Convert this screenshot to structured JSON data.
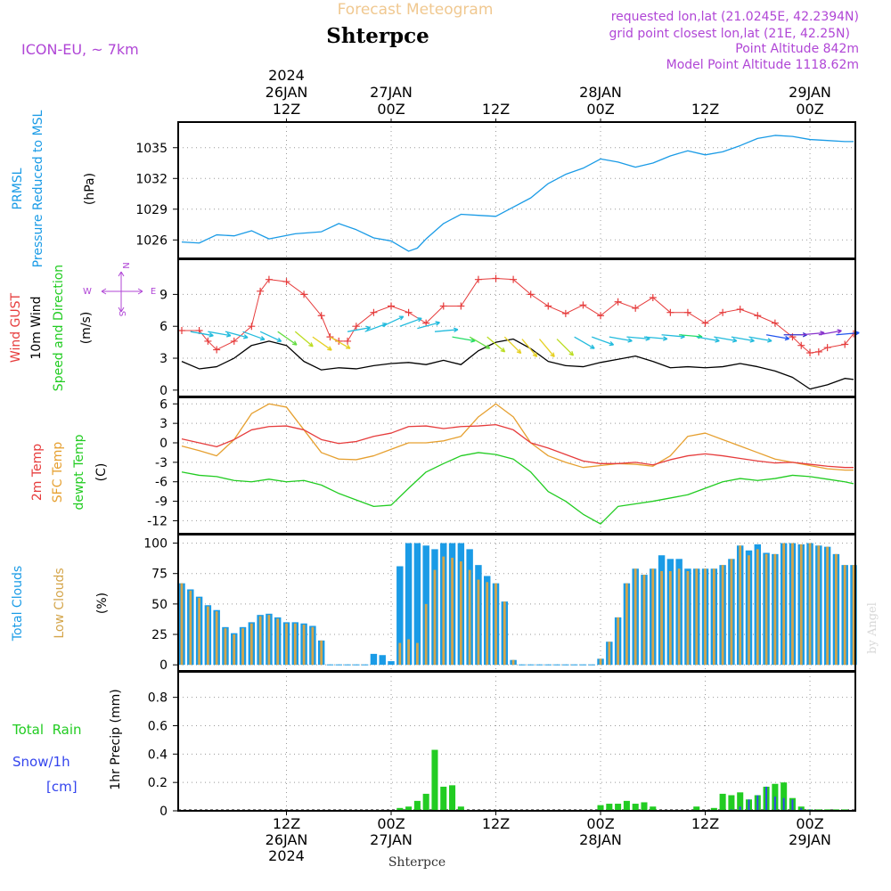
{
  "header": {
    "title": "Forecast Meteogram",
    "location": "Shterpce",
    "model": "ICON-EU, ~ 7km",
    "requested": "requested lon,lat (21.0245E, 42.2394N)",
    "grid_point": "grid point closest lon,lat (21E, 42.25N)",
    "point_altitude": "Point Altitude 842m",
    "model_altitude": "Model Point Altitude 1118.62m",
    "watermark": "by Angel",
    "footer_location": "Shterpce"
  },
  "colors": {
    "pressure": "#1a9be6",
    "gust": "#e63c3c",
    "wind": "#000000",
    "temp2m": "#e63c3c",
    "sfc": "#e6a030",
    "dewpt": "#22cc22",
    "total_clouds": "#1a9be6",
    "low_clouds": "#d4a54a",
    "rain": "#22cc22",
    "snow": "#3344ee",
    "header_purple": "#b046d6",
    "title_orange": "#f0c890"
  },
  "time_axis": {
    "top_labels": [
      {
        "hour": 12,
        "lines": [
          "2024",
          "26JAN",
          "12Z"
        ]
      },
      {
        "hour": 24,
        "lines": [
          "27JAN",
          "00Z"
        ]
      },
      {
        "hour": 36,
        "lines": [
          "12Z"
        ]
      },
      {
        "hour": 48,
        "lines": [
          "28JAN",
          "00Z"
        ]
      },
      {
        "hour": 60,
        "lines": [
          "12Z"
        ]
      },
      {
        "hour": 72,
        "lines": [
          "29JAN",
          "00Z"
        ]
      }
    ],
    "bottom_labels": [
      {
        "hour": 12,
        "lines": [
          "12Z",
          "26JAN",
          "2024"
        ]
      },
      {
        "hour": 24,
        "lines": [
          "00Z",
          "27JAN"
        ]
      },
      {
        "hour": 36,
        "lines": [
          "12Z"
        ]
      },
      {
        "hour": 48,
        "lines": [
          "00Z",
          "28JAN"
        ]
      },
      {
        "hour": 60,
        "lines": [
          "12Z"
        ]
      },
      {
        "hour": 72,
        "lines": [
          "00Z",
          "29JAN"
        ]
      }
    ],
    "start_hour": 0,
    "end_hour": 77
  },
  "panels": {
    "pressure": {
      "label_lines": [
        "PRMSL",
        "Pressure Reduced to MSL"
      ],
      "unit": "(hPa)",
      "yticks": [
        1026,
        1029,
        1032,
        1035
      ]
    },
    "wind": {
      "label_gust": "Wind GUST",
      "label_wind": "10m Wind",
      "label_dir": "Speed and Direction",
      "unit": "(m/s)",
      "yticks": [
        0,
        3,
        6,
        9
      ],
      "compass": {
        "n": "N",
        "s": "S",
        "w": "W",
        "e": "E"
      }
    },
    "temp": {
      "label_2m": "2m Temp",
      "label_sfc": "SFC Temp",
      "label_dew": "dewpt Temp",
      "unit": "(C)",
      "yticks": [
        6,
        3,
        0,
        -3,
        -6,
        -9,
        -12
      ]
    },
    "clouds": {
      "label_total": "Total Clouds",
      "label_low": "Low Clouds",
      "unit": "(%)",
      "yticks": [
        0,
        25,
        50,
        75,
        100
      ]
    },
    "precip": {
      "label_rain": "Total  Rain",
      "label_snow": "Snow/1h",
      "label_cm": "[cm]",
      "axis_label": "1hr Precip (mm)",
      "yticks": [
        0,
        0.2,
        0.4,
        0.6,
        0.8
      ]
    }
  },
  "chart_data": {
    "type": "line",
    "x_unit": "hours since 26JAN 00Z",
    "pressure": {
      "ylim": [
        1024.2,
        1037.5
      ],
      "x": [
        0,
        2,
        4,
        6,
        8,
        10,
        13,
        16,
        18,
        20,
        22,
        24,
        26,
        27,
        28,
        30,
        32,
        34,
        36,
        38,
        40,
        42,
        44,
        46,
        48,
        50,
        52,
        54,
        56,
        58,
        60,
        62,
        64,
        66,
        68,
        70,
        72,
        74,
        76,
        77
      ],
      "values": [
        1025.8,
        1025.7,
        1026.5,
        1026.4,
        1026.9,
        1026.1,
        1026.6,
        1026.8,
        1027.6,
        1027.0,
        1026.2,
        1025.9,
        1024.9,
        1025.2,
        1026.1,
        1027.6,
        1028.5,
        1028.4,
        1028.3,
        1029.2,
        1030.1,
        1031.5,
        1032.4,
        1033.0,
        1033.9,
        1033.6,
        1033.1,
        1033.5,
        1034.2,
        1034.7,
        1034.3,
        1034.6,
        1035.2,
        1035.9,
        1036.2,
        1036.1,
        1035.8,
        1035.7,
        1035.6,
        1035.6
      ]
    },
    "wind": {
      "ylim": [
        -0.6,
        12.3
      ],
      "gust_x": [
        0,
        2,
        3,
        4,
        6,
        8,
        9,
        10,
        12,
        14,
        16,
        17,
        18,
        19,
        20,
        22,
        24,
        26,
        28,
        30,
        32,
        34,
        36,
        38,
        40,
        42,
        44,
        46,
        48,
        50,
        52,
        54,
        56,
        58,
        60,
        62,
        64,
        66,
        68,
        70,
        71,
        72,
        73,
        74,
        76,
        77
      ],
      "gust": [
        5.6,
        5.6,
        4.6,
        3.8,
        4.6,
        6.0,
        9.3,
        10.4,
        10.2,
        9.0,
        7.0,
        5.0,
        4.6,
        4.6,
        6.0,
        7.3,
        7.9,
        7.3,
        6.3,
        7.9,
        7.9,
        10.4,
        10.5,
        10.4,
        9.0,
        7.9,
        7.2,
        8.0,
        7.0,
        8.3,
        7.7,
        8.7,
        7.3,
        7.3,
        6.3,
        7.3,
        7.6,
        7.0,
        6.3,
        5.0,
        4.2,
        3.5,
        3.6,
        4.0,
        4.3,
        5.3
      ],
      "wind_x": [
        0,
        2,
        4,
        6,
        8,
        10,
        12,
        14,
        16,
        18,
        20,
        22,
        24,
        26,
        28,
        30,
        32,
        34,
        36,
        38,
        40,
        42,
        44,
        46,
        48,
        50,
        52,
        54,
        56,
        58,
        60,
        62,
        64,
        66,
        68,
        70,
        72,
        74,
        76,
        77
      ],
      "wind": [
        2.7,
        2.0,
        2.2,
        3.0,
        4.2,
        4.6,
        4.2,
        2.7,
        1.9,
        2.1,
        2.0,
        2.3,
        2.5,
        2.6,
        2.4,
        2.8,
        2.4,
        3.7,
        4.5,
        4.8,
        3.9,
        2.7,
        2.3,
        2.2,
        2.6,
        2.9,
        3.2,
        2.7,
        2.1,
        2.2,
        2.1,
        2.2,
        2.5,
        2.2,
        1.8,
        1.2,
        0.1,
        0.5,
        1.1,
        1.0
      ],
      "arrows": {
        "x": [
          1,
          3,
          5,
          7,
          9,
          11,
          13,
          15,
          17,
          19,
          21,
          23,
          25,
          27,
          29,
          31,
          33,
          35,
          37,
          39,
          41,
          43,
          45,
          47,
          49,
          51,
          53,
          55,
          57,
          59,
          61,
          63,
          65,
          67,
          69,
          71,
          73,
          75
        ],
        "speed": [
          5.5,
          5.5,
          5.5,
          5.5,
          5.5,
          5.5,
          5.5,
          5.0,
          5.0,
          5.5,
          5.5,
          6.0,
          6.0,
          5.8,
          5.5,
          5.0,
          5.0,
          5.0,
          5.0,
          4.8,
          4.8,
          4.8,
          5.0,
          5.0,
          5.0,
          5.0,
          5.0,
          5.2,
          5.2,
          5.0,
          5.0,
          5.0,
          5.0,
          5.2,
          5.2,
          5.2,
          5.2,
          5.2
        ],
        "dir_deg": [
          100,
          100,
          105,
          110,
          115,
          125,
          130,
          125,
          120,
          80,
          70,
          65,
          70,
          75,
          85,
          100,
          120,
          130,
          135,
          140,
          140,
          135,
          120,
          110,
          100,
          95,
          95,
          95,
          95,
          100,
          100,
          100,
          100,
          100,
          90,
          85,
          80,
          85
        ],
        "color": [
          "#22bbdd",
          "#22bbdd",
          "#22bbdd",
          "#22bbdd",
          "#22bbdd",
          "#66dd44",
          "#bbdd22",
          "#e6d022",
          "#e6d022",
          "#22bbdd",
          "#22bbdd",
          "#22bbdd",
          "#22bbdd",
          "#22bbdd",
          "#22bbdd",
          "#22dd66",
          "#66dd44",
          "#bbdd22",
          "#e6d022",
          "#e6d022",
          "#e6d022",
          "#bbdd22",
          "#22bbdd",
          "#22bbdd",
          "#22bbdd",
          "#22bbdd",
          "#22bbdd",
          "#22bbdd",
          "#22dd66",
          "#22bbdd",
          "#22bbdd",
          "#22bbdd",
          "#22bbdd",
          "#2255ee",
          "#3333cc",
          "#8833cc",
          "#8833cc",
          "#2255ee"
        ]
      }
    },
    "temp": {
      "ylim": [
        -14,
        7
      ],
      "x": [
        0,
        2,
        4,
        6,
        8,
        10,
        12,
        14,
        16,
        18,
        20,
        22,
        24,
        26,
        28,
        30,
        32,
        34,
        36,
        38,
        40,
        42,
        44,
        46,
        48,
        50,
        52,
        54,
        56,
        58,
        60,
        62,
        64,
        66,
        68,
        70,
        72,
        74,
        76,
        77
      ],
      "temp2m": [
        0.6,
        0.0,
        -0.6,
        0.5,
        2.0,
        2.5,
        2.6,
        2.0,
        0.5,
        -0.1,
        0.2,
        1.0,
        1.5,
        2.5,
        2.6,
        2.2,
        2.5,
        2.6,
        2.8,
        2.0,
        0.0,
        -0.8,
        -1.8,
        -2.8,
        -3.2,
        -3.2,
        -3.0,
        -3.4,
        -2.6,
        -2.0,
        -1.7,
        -2.0,
        -2.4,
        -2.8,
        -3.1,
        -3.0,
        -3.3,
        -3.6,
        -3.8,
        -3.8
      ],
      "sfc": [
        -0.5,
        -1.2,
        -2.0,
        0.5,
        4.5,
        6.0,
        5.5,
        2.0,
        -1.5,
        -2.5,
        -2.6,
        -2.0,
        -1.0,
        0.0,
        0.0,
        0.3,
        1.0,
        4.0,
        6.0,
        4.0,
        0.0,
        -2.0,
        -3.0,
        -3.8,
        -3.5,
        -3.2,
        -3.3,
        -3.6,
        -2.0,
        1.0,
        1.5,
        0.5,
        -0.5,
        -1.5,
        -2.5,
        -3.0,
        -3.5,
        -4.0,
        -4.2,
        -4.2
      ],
      "dewpt": [
        -4.5,
        -5.0,
        -5.2,
        -5.8,
        -6.0,
        -5.6,
        -6.0,
        -5.8,
        -6.5,
        -7.8,
        -8.8,
        -9.8,
        -9.6,
        -7.0,
        -4.5,
        -3.2,
        -2.0,
        -1.5,
        -1.8,
        -2.5,
        -4.5,
        -7.5,
        -9.0,
        -11.0,
        -12.5,
        -9.8,
        -9.4,
        -9.0,
        -8.5,
        -8.0,
        -7.0,
        -6.0,
        -5.5,
        -5.8,
        -5.5,
        -5.0,
        -5.2,
        -5.6,
        -6.0,
        -6.3
      ]
    },
    "clouds": {
      "ylim": [
        -5,
        107
      ],
      "x": [
        0,
        1,
        2,
        3,
        4,
        5,
        6,
        7,
        8,
        9,
        10,
        11,
        12,
        13,
        14,
        15,
        16,
        17,
        18,
        19,
        20,
        21,
        22,
        23,
        24,
        25,
        26,
        27,
        28,
        29,
        30,
        31,
        32,
        33,
        34,
        35,
        36,
        37,
        38,
        39,
        40,
        41,
        42,
        43,
        44,
        45,
        46,
        47,
        48,
        49,
        50,
        51,
        52,
        53,
        54,
        55,
        56,
        57,
        58,
        59,
        60,
        61,
        62,
        63,
        64,
        65,
        66,
        67,
        68,
        69,
        70,
        71,
        72,
        73,
        74,
        75,
        76,
        77
      ],
      "total": [
        67,
        62,
        56,
        49,
        45,
        31,
        26,
        31,
        35,
        41,
        42,
        39,
        35,
        35,
        34,
        32,
        20,
        0,
        0,
        0,
        0,
        0,
        9,
        8,
        3,
        81,
        100,
        100,
        98,
        95,
        100,
        100,
        100,
        95,
        82,
        73,
        67,
        52,
        4,
        0,
        0,
        0,
        0,
        0,
        0,
        0,
        0,
        0,
        5,
        19,
        39,
        67,
        79,
        74,
        79,
        90,
        87,
        87,
        79,
        79,
        79,
        79,
        82,
        87,
        98,
        94,
        99,
        92,
        91,
        100,
        100,
        99,
        100,
        98,
        97,
        91,
        82,
        82
      ],
      "low": [
        67,
        61,
        55,
        48,
        44,
        30,
        25,
        30,
        34,
        40,
        41,
        38,
        34,
        34,
        33,
        31,
        20,
        0,
        0,
        0,
        0,
        0,
        0,
        0,
        0,
        18,
        21,
        18,
        50,
        78,
        89,
        88,
        85,
        78,
        70,
        68,
        67,
        52,
        4,
        0,
        0,
        0,
        0,
        0,
        0,
        0,
        0,
        0,
        5,
        19,
        39,
        67,
        79,
        74,
        79,
        77,
        77,
        79,
        77,
        79,
        79,
        79,
        82,
        87,
        98,
        90,
        95,
        91,
        91,
        100,
        100,
        99,
        100,
        98,
        97,
        91,
        82,
        82
      ]
    },
    "precip": {
      "ylim": [
        0,
        0.98
      ],
      "x": [
        25,
        26,
        27,
        28,
        29,
        30,
        31,
        32,
        33,
        34,
        47,
        48,
        49,
        50,
        51,
        52,
        53,
        54,
        55,
        59,
        60,
        61,
        62,
        63,
        64,
        65,
        66,
        67,
        68,
        69,
        70,
        71,
        72,
        73,
        74,
        75,
        76
      ],
      "rain": [
        0.02,
        0.03,
        0.07,
        0.12,
        0.43,
        0.17,
        0.18,
        0.03,
        0.0,
        0.0,
        0.0,
        0.04,
        0.05,
        0.05,
        0.07,
        0.05,
        0.06,
        0.03,
        0.0,
        0.03,
        0.0,
        0.02,
        0.12,
        0.11,
        0.13,
        0.08,
        0.11,
        0.17,
        0.19,
        0.2,
        0.09,
        0.03,
        0.01,
        0.01,
        0.01,
        0.01,
        0.01
      ],
      "snow": [
        0.0,
        0.0,
        0.0,
        0.0,
        0.0,
        0.0,
        0.0,
        0.0,
        0.0,
        0.0,
        0.0,
        0.0,
        0.0,
        0.0,
        0.0,
        0.0,
        0.0,
        0.0,
        0.0,
        0.0,
        0.0,
        0.0,
        0.0,
        0.01,
        0.03,
        0.08,
        0.11,
        0.17,
        0.1,
        0.09,
        0.08,
        0.02,
        0.01,
        0.0,
        0.0,
        0.0,
        0.0
      ]
    }
  }
}
